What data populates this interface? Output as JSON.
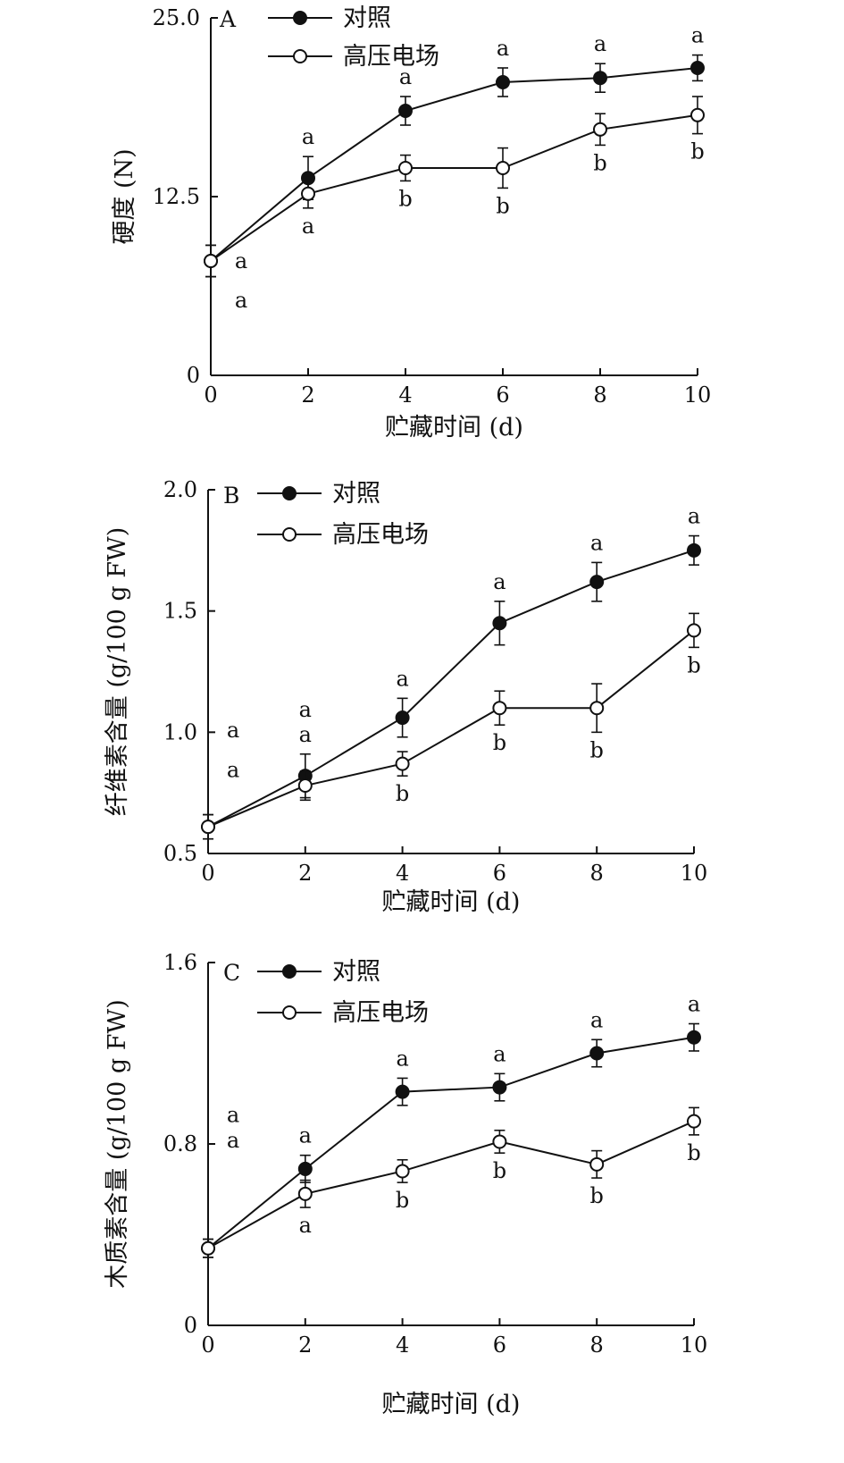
{
  "chart_data": [
    {
      "type": "line",
      "panel": "A",
      "xlabel": "贮藏时间 (d)",
      "ylabel": "硬度 (N)",
      "ylim": [
        0,
        25.0
      ],
      "xlim": [
        0,
        10
      ],
      "xticks": [
        "0",
        "2",
        "4",
        "6",
        "8",
        "10"
      ],
      "yticks": [
        "0",
        "12.5",
        "25.0"
      ],
      "x": [
        0,
        2,
        4,
        6,
        8,
        10
      ],
      "series": [
        {
          "name": "对照",
          "marker": "filled",
          "values": [
            8.0,
            13.8,
            18.5,
            20.5,
            20.8,
            21.5
          ],
          "errors": [
            1.1,
            1.5,
            1.0,
            1.0,
            1.0,
            0.9
          ],
          "letters": [
            "a",
            "a",
            "a",
            "a",
            "a",
            "a"
          ]
        },
        {
          "name": "高压电场",
          "marker": "open",
          "values": [
            8.0,
            12.7,
            14.5,
            14.5,
            17.2,
            18.2
          ],
          "errors": [
            1.1,
            1.0,
            0.9,
            1.4,
            1.1,
            1.3
          ],
          "letters": [
            "a",
            "a",
            "b",
            "b",
            "b",
            "b"
          ]
        }
      ],
      "grid": false,
      "legend": "top-left"
    },
    {
      "type": "line",
      "panel": "B",
      "xlabel": "贮藏时间 (d)",
      "ylabel": "纤维素含量 (g/100 g FW)",
      "ylim": [
        0.5,
        2.0
      ],
      "xlim": [
        0,
        10
      ],
      "xticks": [
        "0",
        "2",
        "4",
        "6",
        "8",
        "10"
      ],
      "yticks": [
        "0.5",
        "1.0",
        "1.5",
        "2.0"
      ],
      "x": [
        0,
        2,
        4,
        6,
        8,
        10
      ],
      "series": [
        {
          "name": "对照",
          "marker": "filled",
          "values": [
            0.61,
            0.82,
            1.06,
            1.45,
            1.62,
            1.75
          ],
          "errors": [
            0.05,
            0.09,
            0.08,
            0.09,
            0.08,
            0.06
          ],
          "letters": [
            "a",
            "a",
            "a",
            "a",
            "a",
            "a"
          ]
        },
        {
          "name": "高压电场",
          "marker": "open",
          "values": [
            0.61,
            0.78,
            0.87,
            1.1,
            1.1,
            1.42
          ],
          "errors": [
            0.05,
            0.06,
            0.05,
            0.07,
            0.1,
            0.07
          ],
          "letters": [
            "a",
            "a",
            "b",
            "b",
            "b",
            "b"
          ]
        }
      ],
      "grid": false,
      "legend": "top-left"
    },
    {
      "type": "line",
      "panel": "C",
      "xlabel": "贮藏时间 (d)",
      "ylabel": "木质素含量 (g/100 g FW)",
      "ylim": [
        0,
        1.6
      ],
      "xlim": [
        0,
        10
      ],
      "xticks": [
        "0",
        "2",
        "4",
        "6",
        "8",
        "10"
      ],
      "yticks": [
        "0",
        "0.8",
        "1.6"
      ],
      "x": [
        0,
        2,
        4,
        6,
        8,
        10
      ],
      "series": [
        {
          "name": "对照",
          "marker": "filled",
          "values": [
            0.34,
            0.69,
            1.03,
            1.05,
            1.2,
            1.27
          ],
          "errors": [
            0.04,
            0.06,
            0.06,
            0.06,
            0.06,
            0.06
          ],
          "letters": [
            "a",
            "a",
            "a",
            "a",
            "a",
            "a"
          ]
        },
        {
          "name": "高压电场",
          "marker": "open",
          "values": [
            0.34,
            0.58,
            0.68,
            0.81,
            0.71,
            0.9
          ],
          "errors": [
            0.04,
            0.06,
            0.05,
            0.05,
            0.06,
            0.06
          ],
          "letters": [
            "a",
            "a",
            "b",
            "b",
            "b",
            "b"
          ]
        }
      ],
      "grid": false,
      "legend": "top-left"
    }
  ]
}
